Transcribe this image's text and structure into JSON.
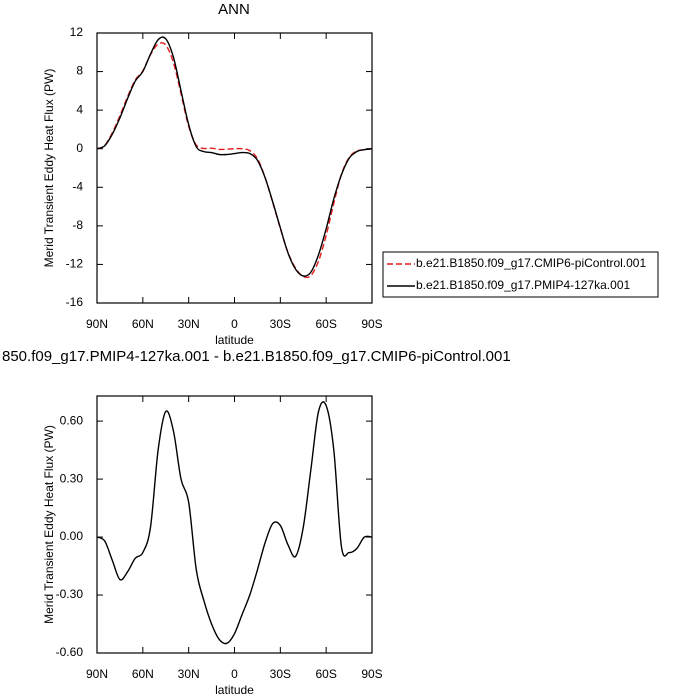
{
  "chart_data": [
    {
      "type": "line",
      "title": "ANN",
      "xlabel": "latitude",
      "ylabel": "Merid Transient Eddy Heat Flux (PW)",
      "x": [
        90,
        85,
        80,
        75,
        70,
        65,
        60,
        55,
        50,
        45,
        40,
        35,
        30,
        25,
        20,
        15,
        10,
        5,
        0,
        -5,
        -10,
        -15,
        -20,
        -25,
        -30,
        -35,
        -40,
        -45,
        -50,
        -55,
        -60,
        -65,
        -70,
        -75,
        -80,
        -85,
        -90
      ],
      "xlim": [
        90,
        -90
      ],
      "xticks": [
        {
          "value": 90,
          "label": "90N"
        },
        {
          "value": 60,
          "label": "60N"
        },
        {
          "value": 30,
          "label": "30N"
        },
        0,
        {
          "value": -30,
          "label": "30S"
        },
        {
          "value": -60,
          "label": "60S"
        },
        {
          "value": -90,
          "label": "90S"
        }
      ],
      "ylim": [
        -16,
        12
      ],
      "yticks": [
        12,
        8,
        4,
        0,
        -4,
        -8,
        -12,
        -16
      ],
      "legend": "outside right",
      "series": [
        {
          "name": "b.e21.B1850.f09_g17.CMIP6-piControl.001",
          "color": "#e41a1c",
          "linestyle": "dashed",
          "values": [
            0,
            0.33,
            1.65,
            3.42,
            5.38,
            7.11,
            8.08,
            9.75,
            10.85,
            10.75,
            8.95,
            5.7,
            2.32,
            0.37,
            0.03,
            0.05,
            -0.07,
            -0.05,
            0,
            0,
            -0.2,
            -1.03,
            -2.97,
            -5.57,
            -8.26,
            -10.76,
            -12.4,
            -13.25,
            -13.15,
            -11.65,
            -8.98,
            -5.65,
            -2.65,
            -0.92,
            -0.24,
            -0.1,
            0
          ]
        },
        {
          "name": "b.e21.B1850.f09_g17.PMIP4-127ka.001",
          "color": "#000000",
          "linestyle": "solid",
          "values": [
            0,
            0.3,
            1.5,
            3.2,
            5.2,
            7,
            8,
            9.8,
            11.3,
            11.4,
            9.5,
            6,
            2.5,
            0.2,
            -0.3,
            -0.4,
            -0.6,
            -0.6,
            -0.5,
            -0.4,
            -0.5,
            -1.2,
            -3,
            -5.5,
            -8.2,
            -10.8,
            -12.5,
            -13.2,
            -12.8,
            -11,
            -8.3,
            -5.2,
            -2.7,
            -1,
            -0.3,
            -0.1,
            0
          ]
        }
      ]
    },
    {
      "type": "line",
      "title": "850.f09_g17.PMIP4-127ka.001 - b.e21.B1850.f09_g17.CMIP6-piControl.001",
      "xlabel": "latitude",
      "ylabel": "Merid Transient Eddy Heat Flux (PW)",
      "x": [
        90,
        85,
        80,
        75,
        70,
        65,
        60,
        55,
        50,
        45,
        40,
        35,
        30,
        25,
        20,
        15,
        10,
        5,
        0,
        -5,
        -10,
        -15,
        -20,
        -25,
        -30,
        -35,
        -40,
        -45,
        -50,
        -55,
        -60,
        -65,
        -70,
        -75,
        -80,
        -85,
        -90
      ],
      "xlim": [
        90,
        -90
      ],
      "xticks": [
        {
          "value": 90,
          "label": "90N"
        },
        {
          "value": 60,
          "label": "60N"
        },
        {
          "value": 30,
          "label": "30N"
        },
        0,
        {
          "value": -30,
          "label": "30S"
        },
        {
          "value": -60,
          "label": "60S"
        },
        {
          "value": -90,
          "label": "90S"
        }
      ],
      "ylim": [
        -0.6,
        0.73
      ],
      "yticks": [
        {
          "value": 0.6,
          "label": "0.60"
        },
        {
          "value": 0.3,
          "label": "0.30"
        },
        {
          "value": 0,
          "label": "0.00"
        },
        {
          "value": -0.3,
          "label": "-0.30"
        },
        {
          "value": -0.6,
          "label": "-0.60"
        }
      ],
      "color": "#000000",
      "values": [
        0,
        -0.02,
        -0.12,
        -0.22,
        -0.18,
        -0.11,
        -0.08,
        0.05,
        0.45,
        0.65,
        0.55,
        0.3,
        0.18,
        -0.17,
        -0.33,
        -0.45,
        -0.53,
        -0.55,
        -0.5,
        -0.4,
        -0.3,
        -0.17,
        -0.03,
        0.07,
        0.06,
        -0.04,
        -0.1,
        0.05,
        0.35,
        0.65,
        0.68,
        0.45,
        -0.05,
        -0.08,
        -0.06,
        0,
        0
      ]
    }
  ]
}
